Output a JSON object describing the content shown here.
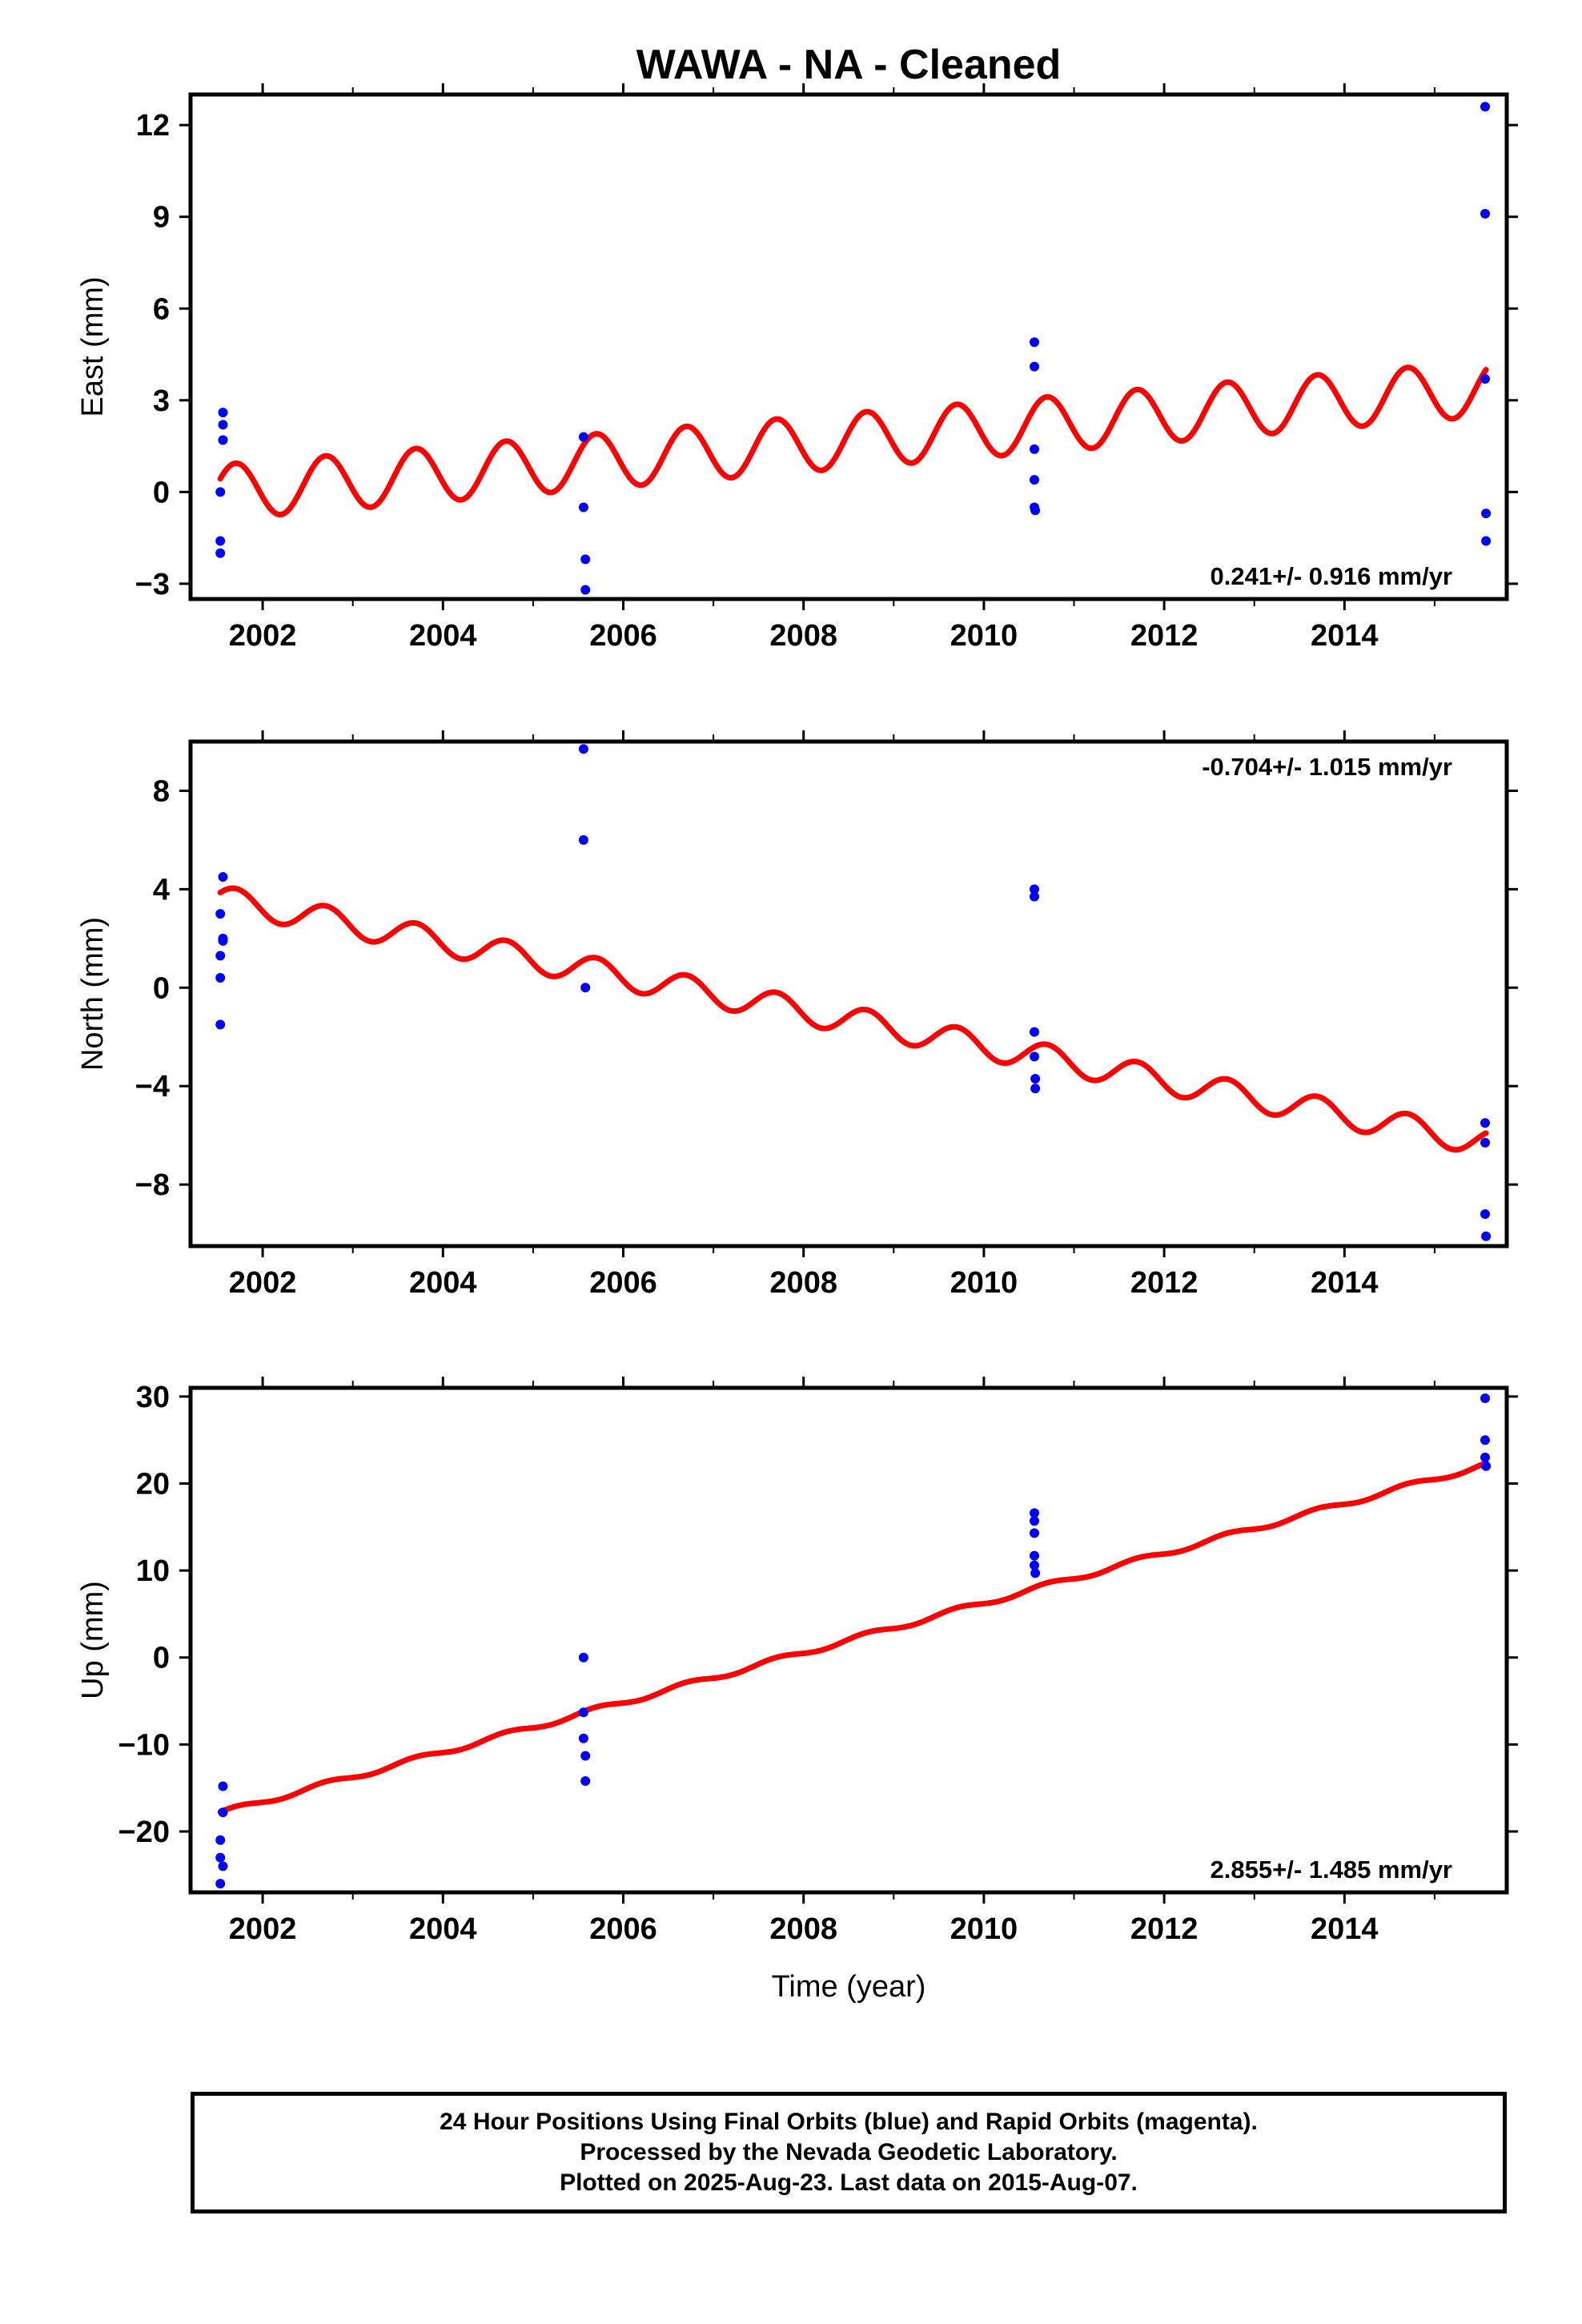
{
  "title": "WAWA  - NA - Cleaned",
  "colors": {
    "final_orbits": "#0000ff",
    "model": "#ff0000",
    "frame": "#000000"
  },
  "chart_data": [
    {
      "type": "scatter",
      "name": "east",
      "ylabel": "East (mm)",
      "xlabel": "",
      "xlim": [
        2001.2,
        2015.8
      ],
      "ylim": [
        -3.5,
        13.0
      ],
      "x_ticks": [
        2002,
        2004,
        2006,
        2008,
        2010,
        2012,
        2014
      ],
      "x_tick_labels": [
        "2002",
        "2004",
        "2006",
        "2008",
        "2010",
        "2012",
        "2014"
      ],
      "y_ticks": [
        -3,
        0,
        3,
        6,
        9,
        12
      ],
      "y_tick_labels": [
        "−3",
        "0",
        "3",
        "6",
        "9",
        "12"
      ],
      "rate_text": "0.241+/- 0.916 mm/yr",
      "rate_position": "bottom-right",
      "points": {
        "x": [
          2001.53,
          2001.53,
          2001.53,
          2001.56,
          2001.56,
          2001.56,
          2005.56,
          2005.56,
          2005.58,
          2005.58,
          2010.56,
          2010.56,
          2010.56,
          2010.56,
          2010.56,
          2010.57,
          2015.56,
          2015.56,
          2015.56,
          2015.57,
          2015.57
        ],
        "y": [
          0.0,
          -1.6,
          -2.0,
          2.6,
          2.2,
          1.7,
          1.8,
          -0.5,
          -2.2,
          -3.2,
          4.9,
          4.1,
          1.4,
          0.4,
          -0.5,
          -0.6,
          12.6,
          9.1,
          3.7,
          -0.7,
          -1.6
        ]
      },
      "model": {
        "intercept_at_start": 0.0,
        "slope_per_yr": 0.241,
        "amplitude": 0.9,
        "phase_year_peak": 2001.7
      }
    },
    {
      "type": "scatter",
      "name": "north",
      "ylabel": "North (mm)",
      "xlabel": "",
      "xlim": [
        2001.2,
        2015.8
      ],
      "ylim": [
        -10.5,
        10.0
      ],
      "x_ticks": [
        2002,
        2004,
        2006,
        2008,
        2010,
        2012,
        2014
      ],
      "x_tick_labels": [
        "2002",
        "2004",
        "2006",
        "2008",
        "2010",
        "2012",
        "2014"
      ],
      "y_ticks": [
        -8,
        -4,
        0,
        4,
        8
      ],
      "y_tick_labels": [
        "−8",
        "−4",
        "0",
        "4",
        "8"
      ],
      "rate_text": "-0.704+/- 1.015 mm/yr",
      "rate_position": "top-right",
      "points": {
        "x": [
          2001.53,
          2001.53,
          2001.53,
          2001.53,
          2001.56,
          2001.56,
          2001.56,
          2005.56,
          2005.56,
          2005.58,
          2010.56,
          2010.56,
          2010.56,
          2010.56,
          2010.57,
          2010.57,
          2015.56,
          2015.56,
          2015.56,
          2015.57
        ],
        "y": [
          3.0,
          1.3,
          0.4,
          -1.5,
          4.5,
          2.0,
          1.9,
          9.7,
          6.0,
          0.0,
          4.0,
          3.7,
          -1.8,
          -2.8,
          -3.7,
          -4.1,
          -5.5,
          -6.3,
          -9.2,
          -10.1
        ]
      },
      "model": {
        "intercept_at_start": 3.6,
        "slope_per_yr": -0.704,
        "amplitude": 0.55,
        "phase_year_peak": 2001.7
      }
    },
    {
      "type": "scatter",
      "name": "up",
      "ylabel": "Up (mm)",
      "xlabel": "Time (year)",
      "xlim": [
        2001.2,
        2015.8
      ],
      "ylim": [
        -27.0,
        31.0
      ],
      "x_ticks": [
        2002,
        2004,
        2006,
        2008,
        2010,
        2012,
        2014
      ],
      "x_tick_labels": [
        "2002",
        "2004",
        "2006",
        "2008",
        "2010",
        "2012",
        "2014"
      ],
      "y_ticks": [
        -20,
        -10,
        0,
        10,
        20,
        30
      ],
      "y_tick_labels": [
        "−20",
        "−10",
        "0",
        "10",
        "20",
        "30"
      ],
      "rate_text": "2.855+/- 1.485 mm/yr",
      "rate_position": "bottom-right",
      "points": {
        "x": [
          2001.53,
          2001.53,
          2001.53,
          2001.56,
          2001.56,
          2001.56,
          2005.56,
          2005.56,
          2005.56,
          2005.58,
          2005.58,
          2010.56,
          2010.56,
          2010.56,
          2010.56,
          2010.56,
          2010.57,
          2015.56,
          2015.56,
          2015.56,
          2015.57
        ],
        "y": [
          -21.0,
          -23.0,
          -26.0,
          -14.8,
          -17.8,
          -24.0,
          0.0,
          -6.3,
          -9.3,
          -11.3,
          -14.2,
          16.6,
          15.7,
          14.3,
          11.7,
          10.6,
          9.7,
          29.8,
          25.0,
          23.0,
          22.0
        ]
      },
      "model": {
        "intercept_at_start": -17.9,
        "slope_per_yr": 2.855,
        "amplitude": 0.3,
        "phase_year_peak": 2001.7
      }
    }
  ],
  "footer": {
    "line1": "24 Hour Positions Using Final Orbits (blue) and Rapid Orbits (magenta).",
    "line2": "Processed by the Nevada Geodetic Laboratory.",
    "line3": "Plotted on 2025-Aug-23. Last data on 2015-Aug-07."
  }
}
